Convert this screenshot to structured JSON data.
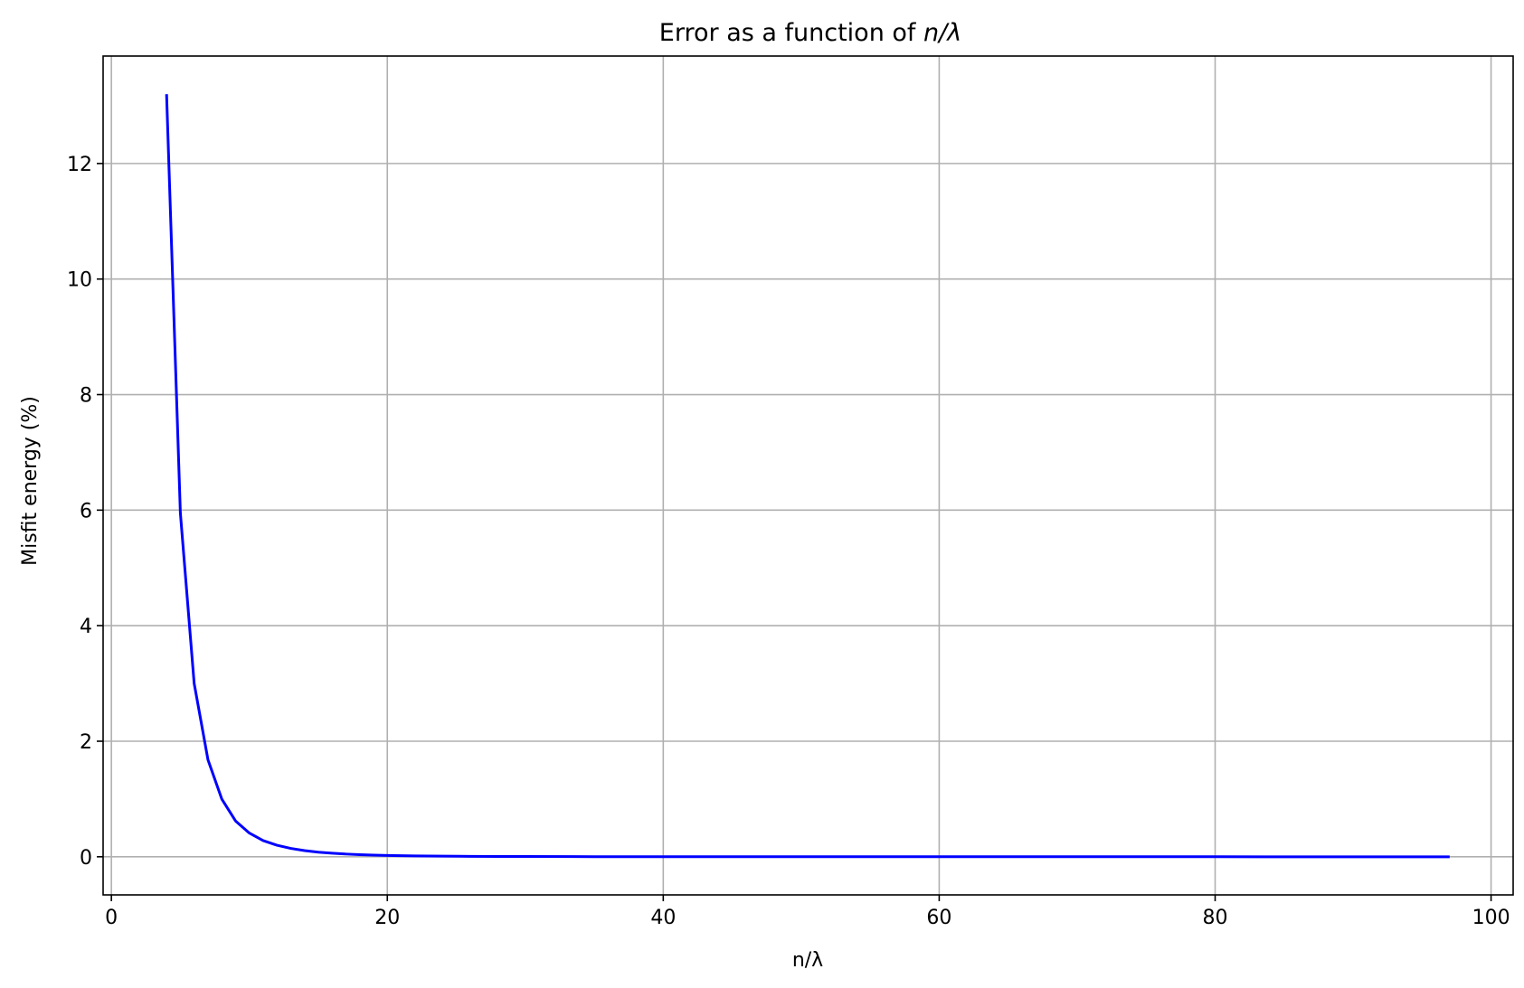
{
  "chart_data": {
    "type": "line",
    "title_prefix": "Error as a function of ",
    "title_math": "n/λ",
    "xlabel": "n/λ",
    "ylabel": "Misfit energy (%)",
    "xlim": [
      -0.6,
      101.6
    ],
    "ylim": [
      -0.66,
      13.86
    ],
    "x_ticks": [
      0,
      20,
      40,
      60,
      80,
      100
    ],
    "y_ticks": [
      0,
      2,
      4,
      6,
      8,
      10,
      12
    ],
    "grid": true,
    "line_color": "#0000ff",
    "series": [
      {
        "x": [
          4,
          5,
          6,
          7,
          8,
          9,
          10,
          11,
          12,
          13,
          14,
          15,
          16,
          17,
          18,
          19,
          20,
          22,
          24,
          26,
          28,
          30,
          35,
          40,
          50,
          60,
          70,
          80,
          90,
          97
        ],
        "y": [
          13.2,
          5.95,
          3.0,
          1.68,
          1.0,
          0.62,
          0.41,
          0.28,
          0.2,
          0.145,
          0.107,
          0.08,
          0.061,
          0.047,
          0.037,
          0.029,
          0.023,
          0.015,
          0.01,
          0.007,
          0.005,
          0.004,
          0.002,
          0.001,
          0.0005,
          0.0002,
          0.0001,
          0.0001,
          0.0,
          0.0
        ]
      }
    ]
  }
}
